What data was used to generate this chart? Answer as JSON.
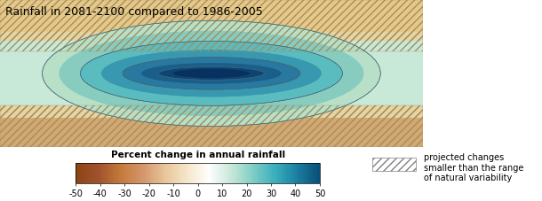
{
  "title": "Rainfall in 2081-2100 compared to 1986-2005",
  "title_fontsize": 9,
  "colorbar_label": "Percent change in annual rainfall",
  "colorbar_ticks": [
    -50,
    -40,
    -30,
    -20,
    -10,
    0,
    10,
    20,
    30,
    40,
    50
  ],
  "colorbar_colors": [
    "#8B4513",
    "#C47A3A",
    "#D4956A",
    "#E8C49A",
    "#F5E6C8",
    "#FEFEFE",
    "#C8E8D8",
    "#7ECEC4",
    "#3AAEBC",
    "#1A7EA0",
    "#0A4E78"
  ],
  "hatch_note_line1": "projected changes",
  "hatch_note_line2": "smaller than the range",
  "hatch_note_line3": "of natural variability",
  "bg_color": "#F0E8D0",
  "map_bg": "#C8D8C0",
  "ellipse_colors": {
    "outer_green": "#A8D8C0",
    "mid_teal": "#5CB8C0",
    "dark_blue_outer": "#2A7EA8",
    "dark_blue_inner": "#1A5E88",
    "core_blue": "#0E3E60"
  },
  "figsize": [
    6.1,
    2.27
  ],
  "dpi": 100
}
